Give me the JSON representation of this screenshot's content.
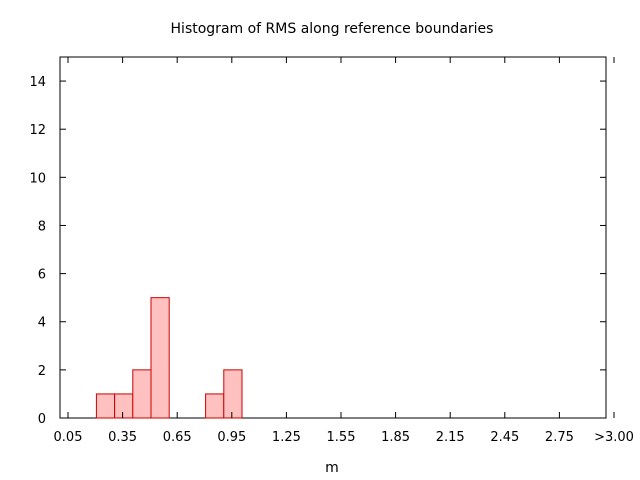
{
  "chart_data": {
    "type": "bar",
    "title": "Histogram of RMS along reference boundaries",
    "xlabel": "m",
    "ylabel": "",
    "x_tick_labels": [
      "0.05",
      "0.35",
      "0.65",
      "0.95",
      "1.25",
      "1.55",
      "1.85",
      "2.15",
      "2.45",
      "2.75",
      ">3.00"
    ],
    "y_tick_labels": [
      "0",
      "2",
      "4",
      "6",
      "8",
      "10",
      "12",
      "14"
    ],
    "y_ticks": [
      0,
      2,
      4,
      6,
      8,
      10,
      12,
      14
    ],
    "xlim": [
      0.0,
      3.0
    ],
    "ylim": [
      0,
      15
    ],
    "bin_width": 0.1,
    "bins": [
      {
        "x": 0.25,
        "value": 1
      },
      {
        "x": 0.35,
        "value": 1
      },
      {
        "x": 0.45,
        "value": 2
      },
      {
        "x": 0.55,
        "value": 5
      },
      {
        "x": 0.85,
        "value": 1
      },
      {
        "x": 0.95,
        "value": 2
      }
    ],
    "grid": false,
    "legend": "none",
    "bar_fill": "#ffc0c0",
    "bar_stroke": "#cc0000"
  }
}
